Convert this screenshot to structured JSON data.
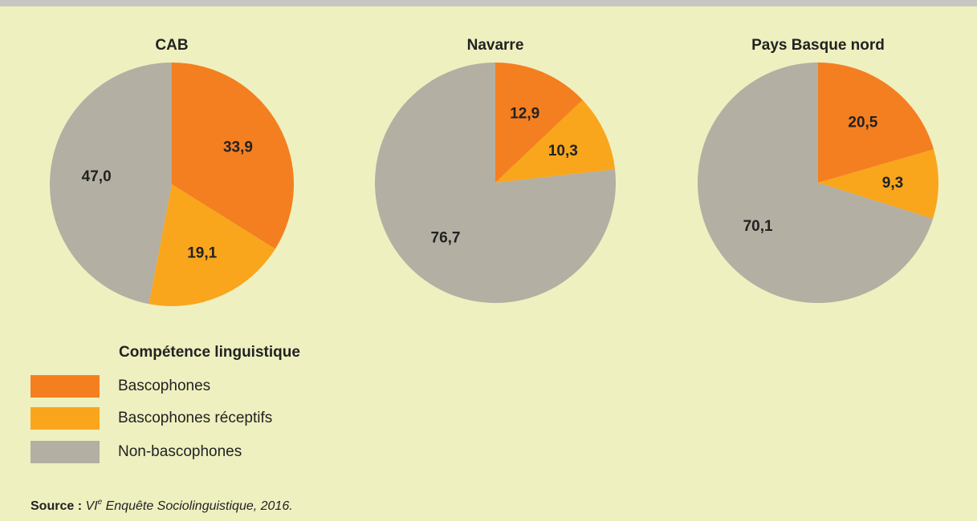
{
  "chart_data": [
    {
      "type": "pie",
      "title": "CAB",
      "categories": [
        "Bascophones",
        "Bascophones réceptifs",
        "Non-bascophones"
      ],
      "values": [
        33.9,
        19.1,
        47.0
      ],
      "value_labels": [
        "33,9",
        "19,1",
        "47,0"
      ],
      "colors": [
        "#f47f20",
        "#f9a61c",
        "#b3afa3"
      ]
    },
    {
      "type": "pie",
      "title": "Navarre",
      "categories": [
        "Bascophones",
        "Bascophones réceptifs",
        "Non-bascophones"
      ],
      "values": [
        12.9,
        10.3,
        76.7
      ],
      "value_labels": [
        "12,9",
        "10,3",
        "76,7"
      ],
      "colors": [
        "#f47f20",
        "#f9a61c",
        "#b3afa3"
      ]
    },
    {
      "type": "pie",
      "title": "Pays Basque nord",
      "categories": [
        "Bascophones",
        "Bascophones réceptifs",
        "Non-bascophones"
      ],
      "values": [
        20.5,
        9.3,
        70.1
      ],
      "value_labels": [
        "20,5",
        "9,3",
        "70,1"
      ],
      "colors": [
        "#f47f20",
        "#f9a61c",
        "#b3afa3"
      ]
    }
  ],
  "legend_title": "Compétence linguistique",
  "source": {
    "label": "Source :",
    "text": [
      "VI",
      "e",
      " Enquête Sociolinguistique, 2016."
    ]
  }
}
